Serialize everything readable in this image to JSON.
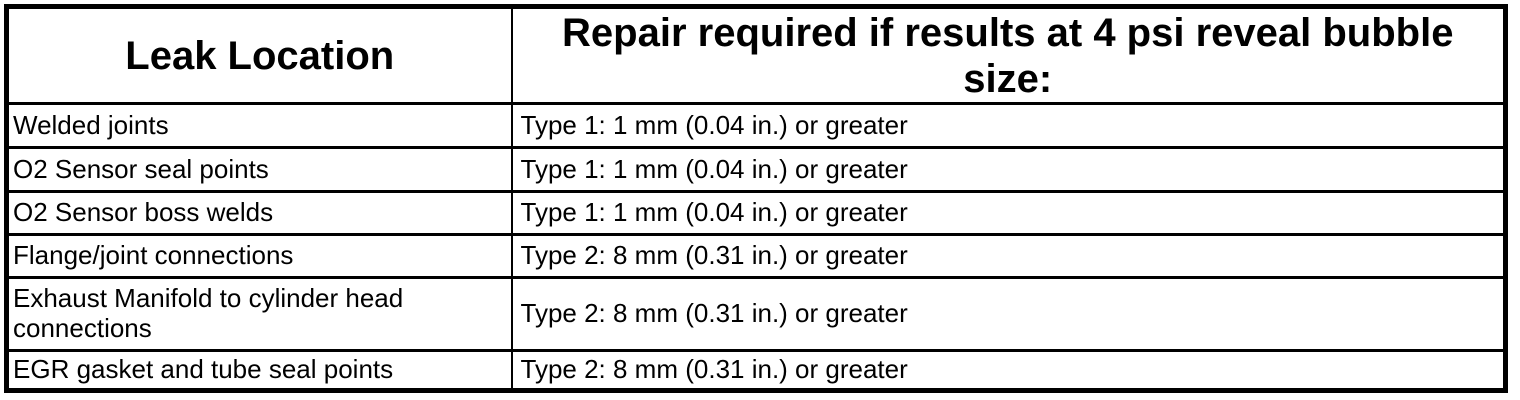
{
  "page": {
    "background": "#ffffff"
  },
  "table": {
    "border_color": "#000000",
    "text_color": "#000000",
    "background": "#ffffff",
    "header": {
      "col1": "Leak Location",
      "col2": "Repair required if results at 4 psi reveal bubble size:"
    },
    "rows": [
      {
        "location": "Welded joints",
        "repair": "Type 1: 1 mm (0.04 in.) or greater"
      },
      {
        "location": "O2 Sensor seal points",
        "repair": "Type 1: 1 mm (0.04 in.) or greater"
      },
      {
        "location": "O2 Sensor boss welds",
        "repair": "Type 1: 1 mm (0.04 in.) or greater"
      },
      {
        "location": "Flange/joint connections",
        "repair": "Type 2: 8 mm (0.31 in.) or greater"
      },
      {
        "location": "Exhaust Manifold to cylinder head connections",
        "repair": "Type 2: 8 mm (0.31 in.) or greater"
      },
      {
        "location": "EGR gasket and tube seal points",
        "repair": "Type 2: 8 mm (0.31 in.) or greater"
      }
    ]
  }
}
